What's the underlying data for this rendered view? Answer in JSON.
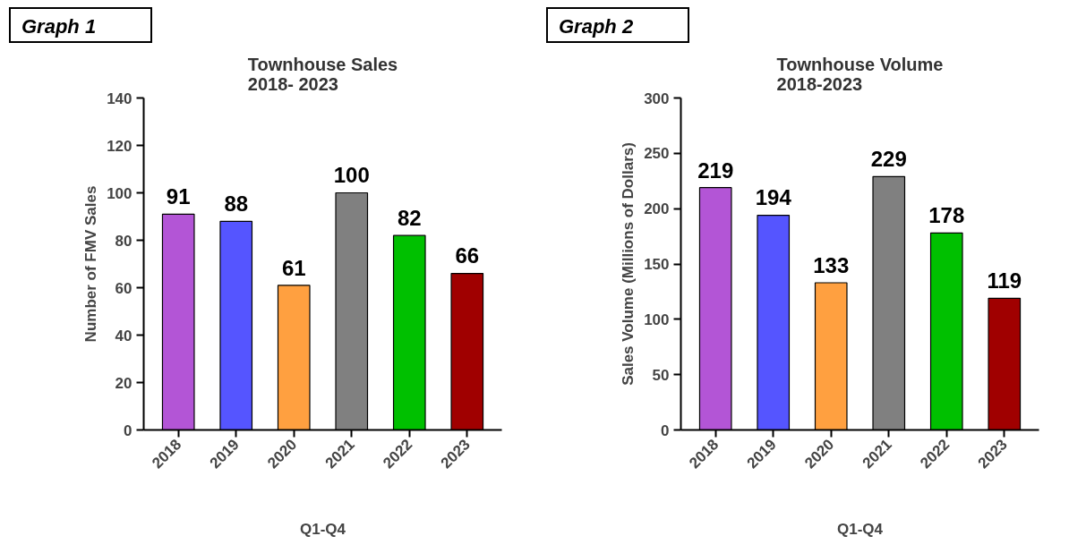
{
  "chart_data": [
    {
      "type": "bar",
      "title": "Townhouse Sales\n2018- 2023",
      "annotations": [
        "Graph 1"
      ],
      "xlabel": "Q1-Q4",
      "ylabel": "Number of FMV Sales",
      "categories": [
        "2018",
        "2019",
        "2020",
        "2021",
        "2022",
        "2023"
      ],
      "values": [
        91,
        88,
        61,
        100,
        82,
        66
      ],
      "colors": [
        "#b355d6",
        "#5555ff",
        "#ffa040",
        "#808080",
        "#00c000",
        "#a00000"
      ],
      "ylim": [
        0,
        140
      ],
      "yticks": [
        0,
        20,
        40,
        60,
        80,
        100,
        120,
        140
      ],
      "data_labels": true,
      "grid": false
    },
    {
      "type": "bar",
      "title": "Townhouse Volume\n2018-2023",
      "annotations": [
        "Graph 2"
      ],
      "xlabel": "Q1-Q4",
      "ylabel": "Sales Volume (Millions of Dollars)",
      "categories": [
        "2018",
        "2019",
        "2020",
        "2021",
        "2022",
        "2023"
      ],
      "values": [
        219,
        194,
        133,
        229,
        178,
        119
      ],
      "colors": [
        "#b355d6",
        "#5555ff",
        "#ffa040",
        "#808080",
        "#00c000",
        "#a00000"
      ],
      "ylim": [
        0,
        300
      ],
      "yticks": [
        0,
        50,
        100,
        150,
        200,
        250,
        300
      ],
      "data_labels": true,
      "grid": false
    }
  ]
}
